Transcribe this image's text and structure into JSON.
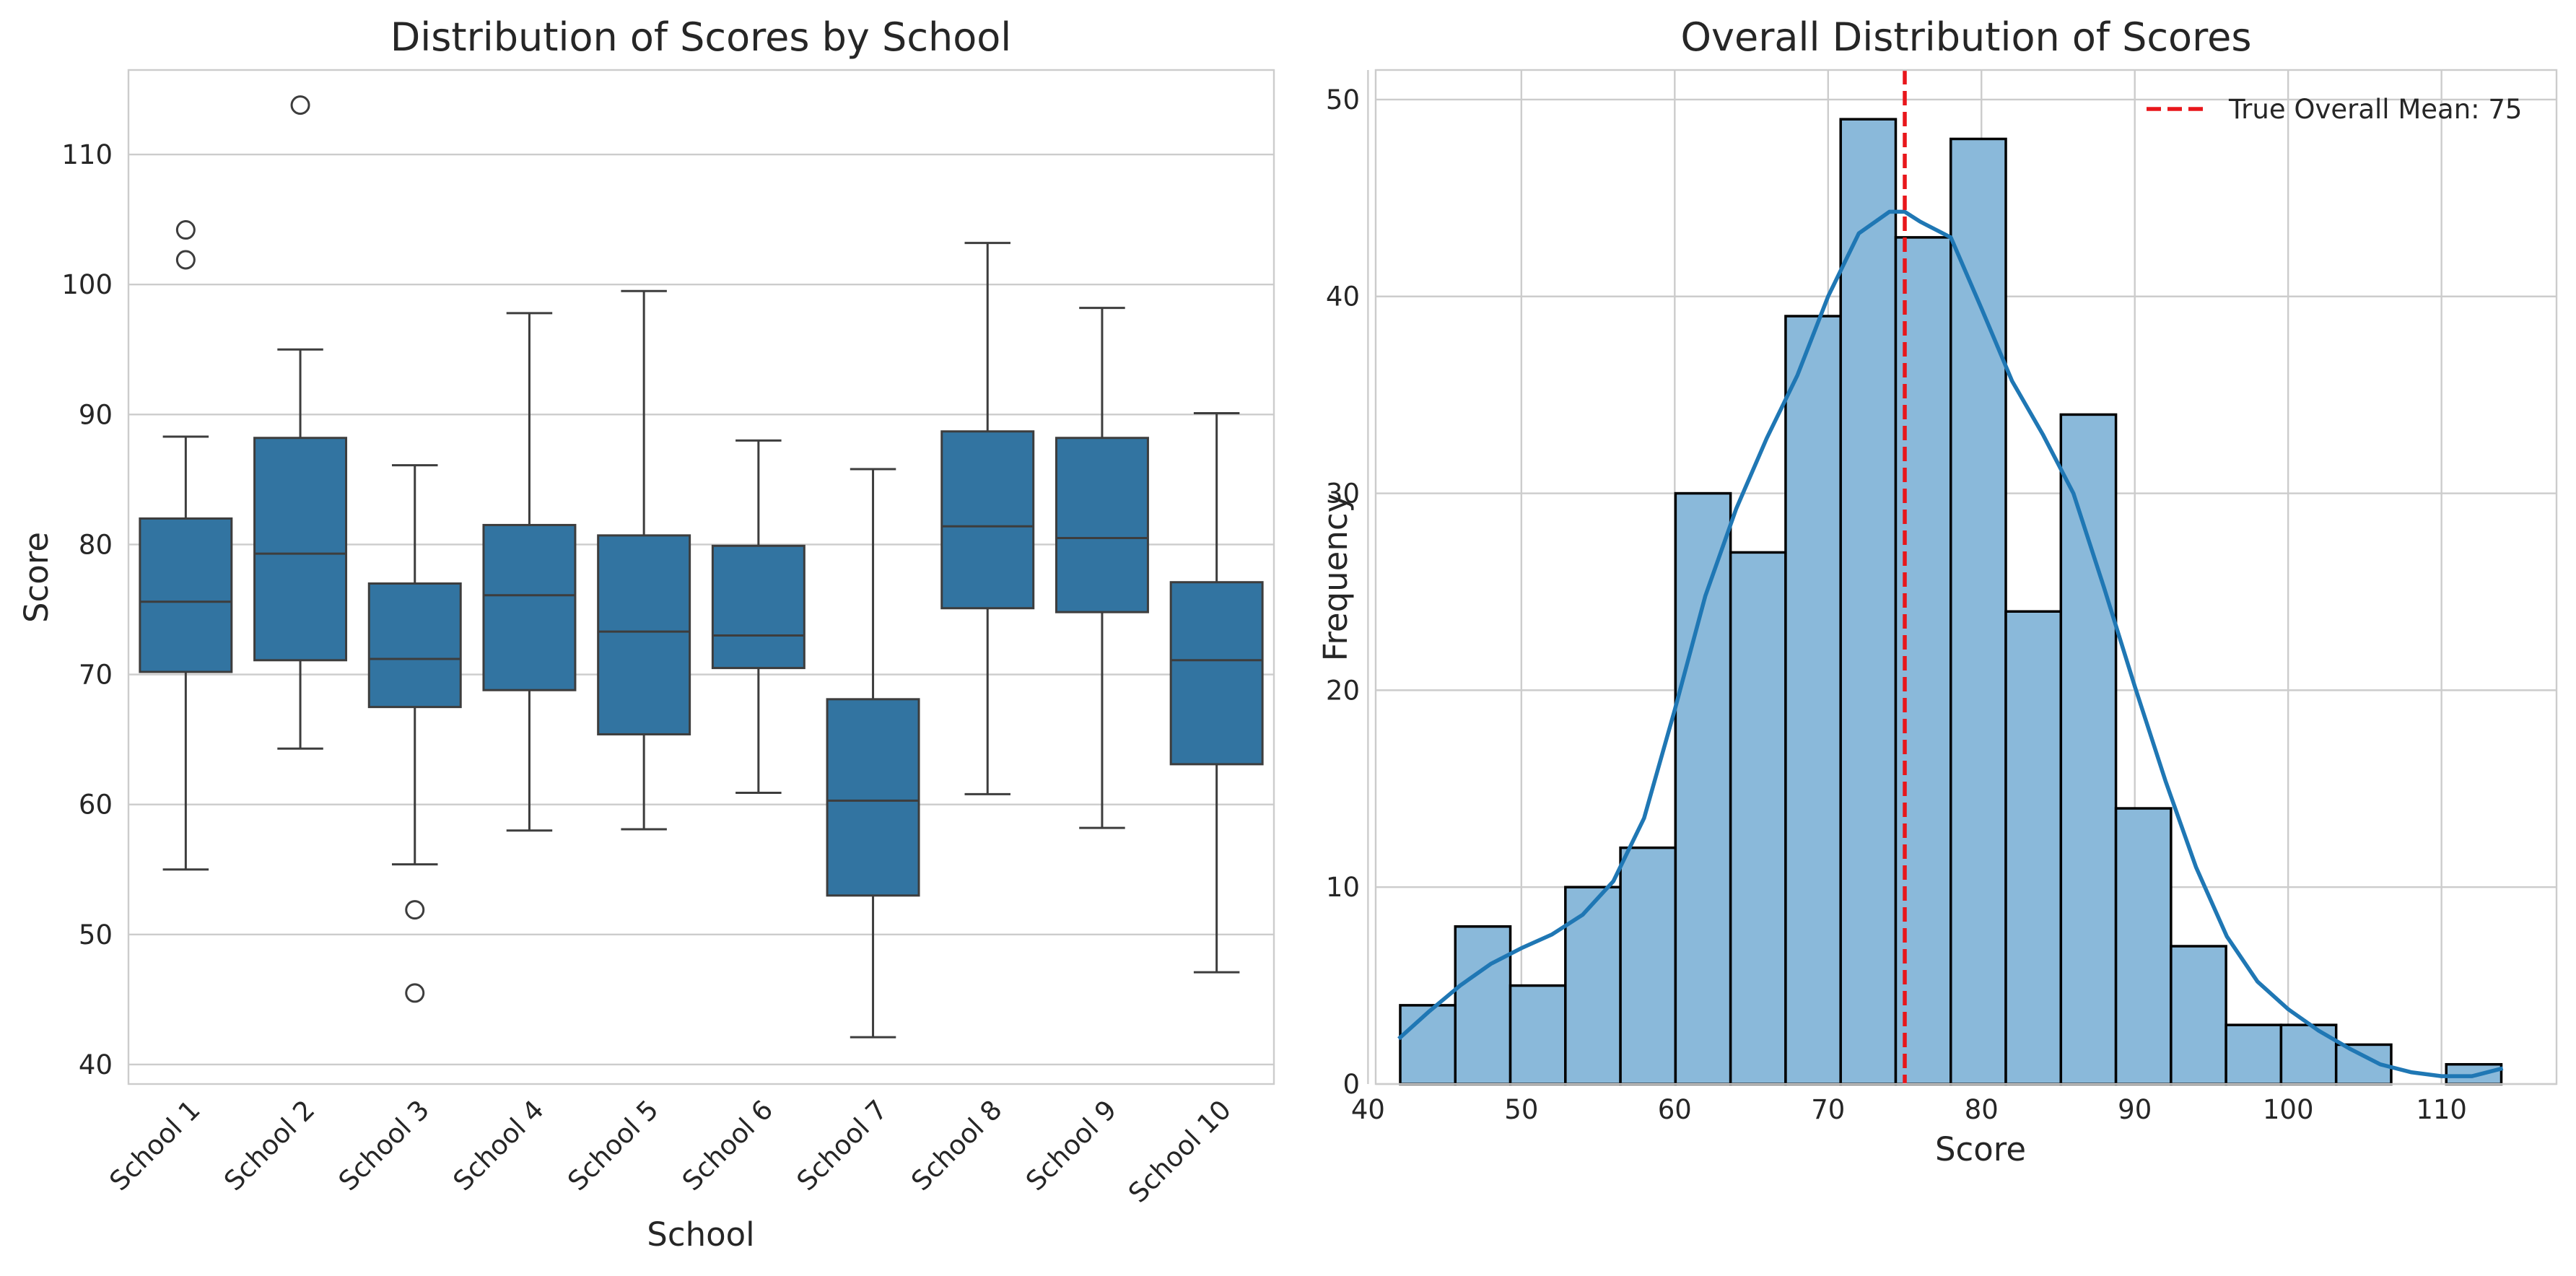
{
  "left_chart": {
    "title": "Distribution of Scores by School",
    "xlabel": "School",
    "ylabel": "Score"
  },
  "right_chart": {
    "title": "Overall Distribution of Scores",
    "xlabel": "Score",
    "ylabel": "Frequency",
    "legend_label": "True Overall Mean: 75"
  },
  "colors": {
    "box_fill": "#3274a1",
    "box_line": "#3d3d3d",
    "hist_fill": "#8ab9da",
    "kde_line": "#1f77b4",
    "mean_line": "#e8161b"
  },
  "chart_data": [
    {
      "type": "box",
      "title": "Distribution of Scores by School",
      "xlabel": "School",
      "ylabel": "Score",
      "categories": [
        "School 1",
        "School 2",
        "School 3",
        "School 4",
        "School 5",
        "School 6",
        "School 7",
        "School 8",
        "School 9",
        "School 10"
      ],
      "boxes": [
        {
          "whisker_low": 55.0,
          "q1": 70.2,
          "median": 75.6,
          "q3": 82.0,
          "whisker_high": 88.3,
          "outliers": [
            101.9,
            104.2
          ]
        },
        {
          "whisker_low": 64.3,
          "q1": 71.1,
          "median": 79.3,
          "q3": 88.2,
          "whisker_high": 95.0,
          "outliers": [
            113.8
          ]
        },
        {
          "whisker_low": 55.4,
          "q1": 67.5,
          "median": 71.2,
          "q3": 77.0,
          "whisker_high": 86.1,
          "outliers": [
            51.9,
            45.5
          ]
        },
        {
          "whisker_low": 58.0,
          "q1": 68.8,
          "median": 76.1,
          "q3": 81.5,
          "whisker_high": 97.8,
          "outliers": []
        },
        {
          "whisker_low": 58.1,
          "q1": 65.4,
          "median": 73.3,
          "q3": 80.7,
          "whisker_high": 99.5,
          "outliers": []
        },
        {
          "whisker_low": 60.9,
          "q1": 70.5,
          "median": 73.0,
          "q3": 79.9,
          "whisker_high": 88.0,
          "outliers": []
        },
        {
          "whisker_low": 42.1,
          "q1": 53.0,
          "median": 60.3,
          "q3": 68.1,
          "whisker_high": 85.8,
          "outliers": []
        },
        {
          "whisker_low": 60.8,
          "q1": 75.1,
          "median": 81.4,
          "q3": 88.7,
          "whisker_high": 103.2,
          "outliers": []
        },
        {
          "whisker_low": 58.2,
          "q1": 74.8,
          "median": 80.5,
          "q3": 88.2,
          "whisker_high": 98.2,
          "outliers": []
        },
        {
          "whisker_low": 47.1,
          "q1": 63.1,
          "median": 71.1,
          "q3": 77.1,
          "whisker_high": 90.1,
          "outliers": []
        }
      ],
      "ylim": [
        38.5,
        116.5
      ],
      "yticks": [
        40,
        50,
        60,
        70,
        80,
        90,
        100,
        110
      ],
      "grid": true
    },
    {
      "type": "histogram",
      "title": "Overall Distribution of Scores",
      "xlabel": "Score",
      "ylabel": "Frequency",
      "bin_edges": [
        42.1,
        45.69,
        49.28,
        52.87,
        56.46,
        60.05,
        63.64,
        67.23,
        70.82,
        74.41,
        78.0,
        81.59,
        85.18,
        88.77,
        92.36,
        95.95,
        99.54,
        103.13,
        106.72,
        110.31,
        113.9
      ],
      "counts": [
        4,
        8,
        5,
        10,
        12,
        30,
        27,
        39,
        49,
        43,
        48,
        24,
        34,
        14,
        7,
        3,
        3,
        2,
        0,
        1
      ],
      "kde": {
        "x": [
          42,
          44,
          46,
          48,
          50,
          52,
          54,
          56,
          58,
          60,
          62,
          64,
          66,
          68,
          70,
          72,
          74,
          75,
          76,
          78,
          80,
          82,
          84,
          86,
          88,
          90,
          92,
          94,
          96,
          98,
          100,
          102,
          104,
          106,
          108,
          110,
          112,
          114
        ],
        "y": [
          2.3,
          3.7,
          5.0,
          6.1,
          6.9,
          7.6,
          8.6,
          10.3,
          13.5,
          19.0,
          24.8,
          29.2,
          32.8,
          36.0,
          40.0,
          43.2,
          44.3,
          44.3,
          43.8,
          43.0,
          39.4,
          35.7,
          33.0,
          30.0,
          25.2,
          20.2,
          15.4,
          11.0,
          7.5,
          5.2,
          3.8,
          2.7,
          1.8,
          1.0,
          0.6,
          0.4,
          0.4,
          0.8
        ]
      },
      "mean_line": {
        "x": 75,
        "label": "True Overall Mean: 75",
        "style": "dashed"
      },
      "xlim": [
        40.5,
        117.5
      ],
      "ylim": [
        0,
        51.5
      ],
      "xticks": [
        40,
        50,
        60,
        70,
        80,
        90,
        100,
        110
      ],
      "yticks": [
        0,
        10,
        20,
        30,
        40,
        50
      ],
      "legend_position": "top-right",
      "grid": true
    }
  ]
}
